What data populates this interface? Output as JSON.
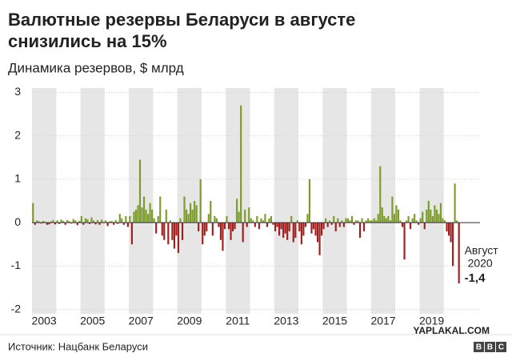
{
  "chart_data": {
    "type": "bar",
    "title": [
      "Валютные резервы Беларуси в августе",
      "снизились на 15%"
    ],
    "subtitle": "Динамика резервов, $ млрд",
    "source": "Источник: Нацбанк Беларуси",
    "logo": [
      "B",
      "B",
      "C"
    ],
    "watermark": "YAPLAKAL.COM",
    "positive_color": "#7b9b2b",
    "negative_color": "#a11d1d",
    "xlim": [
      2003,
      2021
    ],
    "xticks": [
      2003,
      2005,
      2007,
      2009,
      2011,
      2013,
      2015,
      2017,
      2019
    ],
    "ylim": [
      -2.1,
      3.1
    ],
    "yticks": [
      -2,
      -1,
      0,
      1,
      2,
      3
    ],
    "grid": true,
    "annotation": {
      "text": [
        "Август",
        "2020"
      ],
      "value_label": "-1,4"
    },
    "values": [
      0.45,
      -0.05,
      0.05,
      0.03,
      -0.02,
      0.04,
      0.02,
      -0.05,
      -0.04,
      0.03,
      0.06,
      -0.04,
      0.05,
      -0.03,
      0.07,
      0.04,
      -0.05,
      0.06,
      0.03,
      -0.02,
      0.08,
      0.05,
      -0.06,
      0.04,
      0.15,
      -0.05,
      0.1,
      0.08,
      -0.03,
      0.12,
      0.05,
      -0.04,
      0.06,
      -0.05,
      0.07,
      0.02,
      0.05,
      -0.08,
      0.03,
      0.04,
      -0.05,
      0.06,
      -0.03,
      0.2,
      0.1,
      -0.05,
      0.15,
      -0.1,
      0.15,
      -0.5,
      0.25,
      0.3,
      0.4,
      1.45,
      0.35,
      0.6,
      0.3,
      0.2,
      0.45,
      0.3,
      0.1,
      -0.25,
      0.15,
      0.6,
      -0.3,
      -0.4,
      0.3,
      -0.5,
      0.05,
      -0.4,
      -0.6,
      -0.3,
      -0.7,
      0.1,
      -0.4,
      0.6,
      0.3,
      0.2,
      0.45,
      0.3,
      0.5,
      0.4,
      -0.2,
      1.0,
      -0.5,
      -0.3,
      -0.2,
      0.2,
      0.5,
      -0.3,
      0.15,
      0.1,
      -0.1,
      -0.4,
      -0.65,
      -0.15,
      0.15,
      -0.15,
      -0.4,
      -0.2,
      -0.15,
      0.55,
      0.25,
      2.7,
      -0.45,
      0.3,
      -0.1,
      0.35,
      0.1,
      0.05,
      -0.1,
      0.15,
      -0.15,
      0.1,
      0.05,
      0.2,
      -0.1,
      0.1,
      0.15,
      -0.05,
      -0.2,
      -0.1,
      -0.3,
      -0.15,
      -0.35,
      -0.25,
      -0.4,
      -0.2,
      0.15,
      -0.45,
      -0.35,
      0.05,
      -0.2,
      -0.5,
      -0.3,
      -0.1,
      0.2,
      1.0,
      -0.25,
      -0.15,
      -0.3,
      -0.45,
      -0.75,
      -0.3,
      -0.15,
      0.1,
      -0.1,
      0.05,
      -0.05,
      0.15,
      -0.2,
      0.1,
      -0.1,
      0.05,
      -0.1,
      0.1,
      0.1,
      0.05,
      0.15,
      -0.05,
      0.05,
      0.05,
      -0.35,
      0.1,
      -0.2,
      0.05,
      0.1,
      0.05,
      0.05,
      0.1,
      0.05,
      0.2,
      1.3,
      0.35,
      0.15,
      0.1,
      0.15,
      0.05,
      0.6,
      0.2,
      0.4,
      0.3,
      0.05,
      -0.1,
      -0.85,
      0.05,
      0.15,
      -0.15,
      0.1,
      0.2,
      0.05,
      -0.05,
      0.1,
      0.25,
      -0.15,
      0.3,
      0.5,
      0.3,
      0.15,
      0.4,
      0.3,
      0.2,
      0.45,
      0.1,
      0.05,
      -0.2,
      -0.3,
      -0.45,
      -1.0,
      0.9,
      0.05,
      -1.4
    ]
  }
}
